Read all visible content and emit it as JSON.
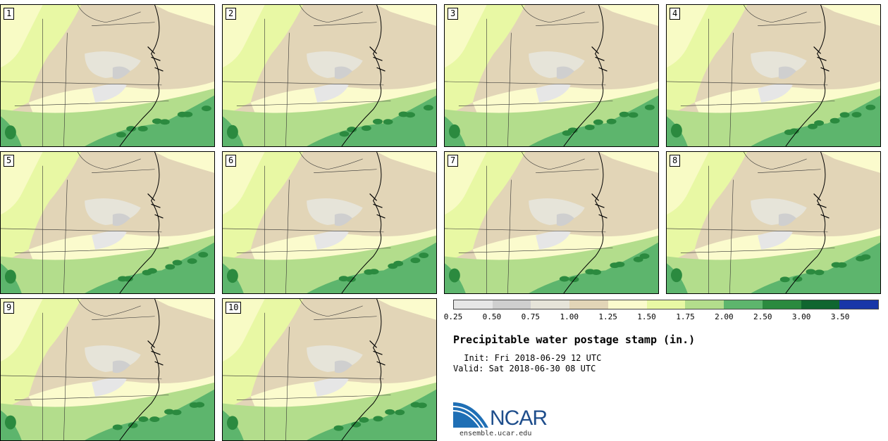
{
  "title": "Precipitable water postage stamp (in.)",
  "init_line": " Init: Fri 2018-06-29 12 UTC",
  "valid_line": "Valid: Sat 2018-06-30 08 UTC",
  "members": [
    "1",
    "2",
    "3",
    "4",
    "5",
    "6",
    "7",
    "8",
    "9",
    "10"
  ],
  "colorbar": {
    "colors": [
      "#e6e6e6",
      "#cfcfcf",
      "#e6e4d9",
      "#e2d5b7",
      "#fbfbcd",
      "#e8f8a4",
      "#b3dd8c",
      "#5db56d",
      "#2b8a3f",
      "#106630",
      "#1836a8"
    ],
    "tick_labels": [
      "0.25",
      "0.50",
      "0.75",
      "1.00",
      "1.25",
      "1.50",
      "1.75",
      "2.00",
      "2.50",
      "3.00",
      "3.50"
    ]
  },
  "logo": {
    "name": "NCAR",
    "url": "ensemble.ucar.edu"
  }
}
